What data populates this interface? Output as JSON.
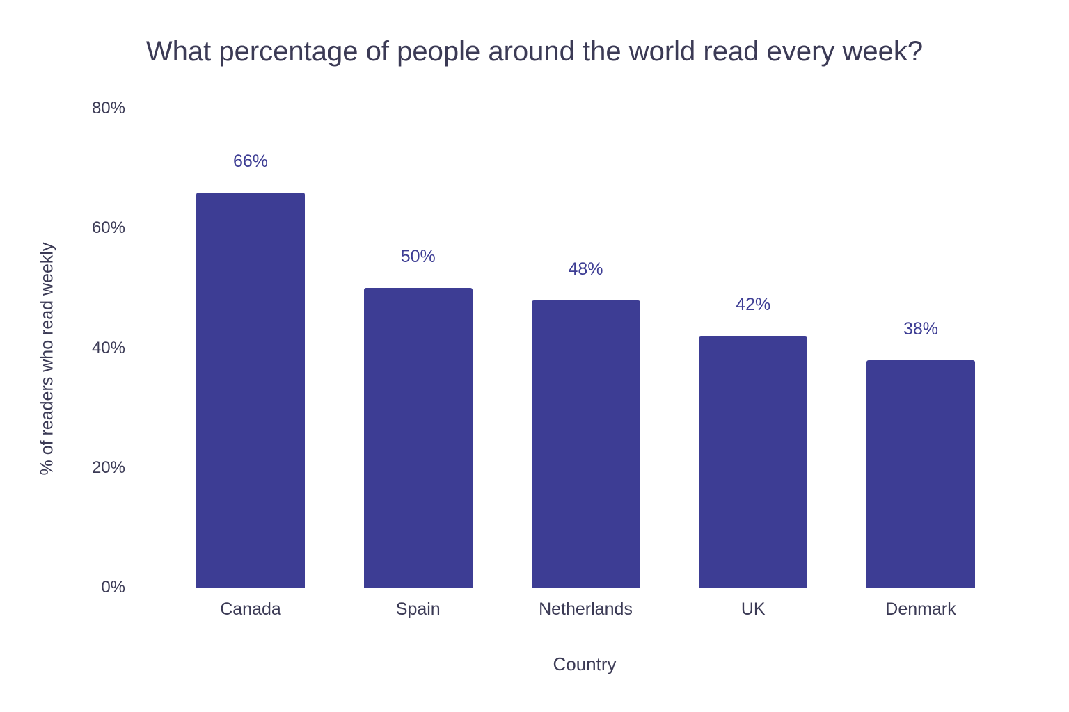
{
  "chart_data": {
    "type": "bar",
    "title": "What percentage of people around the world read every week?",
    "xlabel": "Country",
    "ylabel": "% of readers who read weekly",
    "categories": [
      "Canada",
      "Spain",
      "Netherlands",
      "UK",
      "Denmark"
    ],
    "values": [
      66,
      50,
      48,
      42,
      38
    ],
    "value_labels": [
      "66%",
      "50%",
      "48%",
      "42%",
      "38%"
    ],
    "ylim": [
      0,
      80
    ],
    "yticks": [
      "0%",
      "20%",
      "40%",
      "60%",
      "80%"
    ],
    "grid": false,
    "legend": null,
    "bar_color": "#3d3d94"
  }
}
